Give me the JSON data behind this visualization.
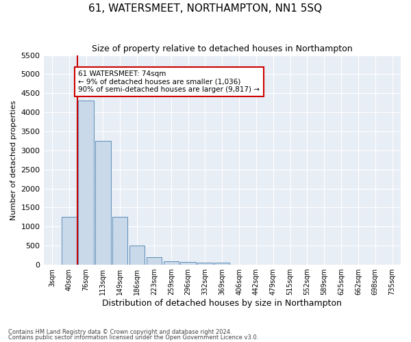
{
  "title": "61, WATERSMEET, NORTHAMPTON, NN1 5SQ",
  "subtitle": "Size of property relative to detached houses in Northampton",
  "xlabel": "Distribution of detached houses by size in Northampton",
  "ylabel": "Number of detached properties",
  "footnote1": "Contains HM Land Registry data © Crown copyright and database right 2024.",
  "footnote2": "Contains public sector information licensed under the Open Government Licence v3.0.",
  "annotation_title": "61 WATERSMEET: 74sqm",
  "annotation_line1": "← 9% of detached houses are smaller (1,036)",
  "annotation_line2": "90% of semi-detached houses are larger (9,817) →",
  "bar_color": "#c9d9ea",
  "bar_edge_color": "#5b8db8",
  "property_line_color": "#cc0000",
  "annotation_box_color": "#cc0000",
  "background_color": "#e8eef5",
  "categories": [
    "3sqm",
    "40sqm",
    "76sqm",
    "113sqm",
    "149sqm",
    "186sqm",
    "223sqm",
    "259sqm",
    "296sqm",
    "332sqm",
    "369sqm",
    "406sqm",
    "442sqm",
    "479sqm",
    "515sqm",
    "552sqm",
    "589sqm",
    "625sqm",
    "662sqm",
    "698sqm",
    "735sqm"
  ],
  "values": [
    0,
    1250,
    4300,
    3250,
    1250,
    500,
    200,
    100,
    75,
    60,
    50,
    0,
    0,
    0,
    0,
    0,
    0,
    0,
    0,
    0,
    0
  ],
  "ylim": [
    0,
    5500
  ],
  "yticks": [
    0,
    500,
    1000,
    1500,
    2000,
    2500,
    3000,
    3500,
    4000,
    4500,
    5000,
    5500
  ],
  "property_bar_index": 1,
  "num_bars": 21
}
